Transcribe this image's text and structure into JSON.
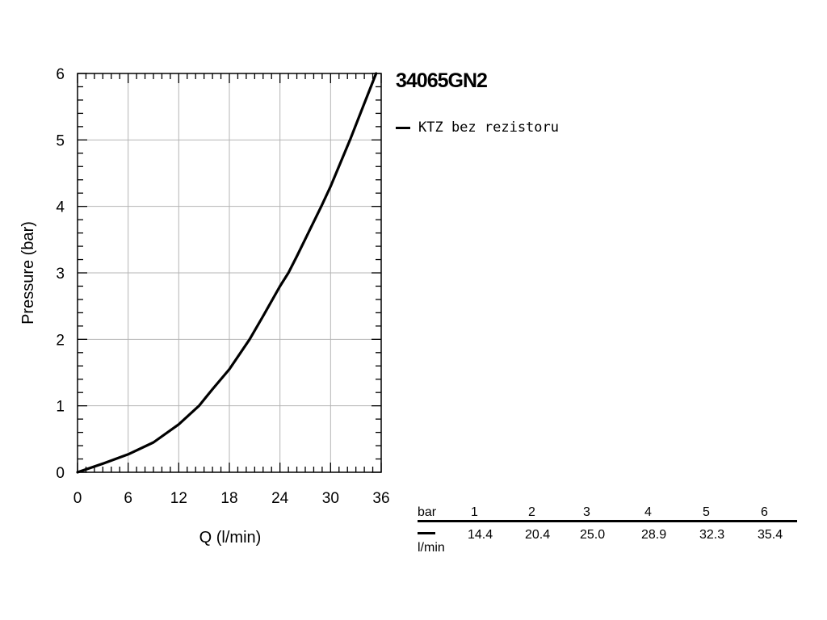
{
  "chart_data": {
    "type": "line",
    "title": "34065GN2",
    "xlabel": "Q (l/min)",
    "ylabel": "Pressure (bar)",
    "xlim": [
      0,
      36
    ],
    "ylim": [
      0,
      6
    ],
    "x_ticks": [
      "0",
      "6",
      "12",
      "18",
      "24",
      "30",
      "36"
    ],
    "y_ticks": [
      "0",
      "1",
      "2",
      "3",
      "4",
      "5",
      "6"
    ],
    "grid": true,
    "legend_position": "right-top",
    "series": [
      {
        "name": "KTZ bez rezistoru",
        "color": "#000000",
        "x": [
          0,
          3,
          6,
          9,
          12,
          14.4,
          16,
          18,
          20.4,
          22,
          24,
          25.0,
          26,
          28.9,
          30,
          32.3,
          34,
          35.4
        ],
        "y": [
          0,
          0.13,
          0.27,
          0.45,
          0.72,
          1.0,
          1.25,
          1.55,
          2.0,
          2.35,
          2.8,
          3.0,
          3.25,
          4.0,
          4.3,
          5.0,
          5.55,
          6.0
        ]
      }
    ]
  },
  "table": {
    "header_label": "bar",
    "pressures": [
      "1",
      "2",
      "3",
      "4",
      "5",
      "6"
    ],
    "row_label": "l/min",
    "flows": [
      "14.4",
      "20.4",
      "25.0",
      "28.9",
      "32.3",
      "35.4"
    ]
  }
}
